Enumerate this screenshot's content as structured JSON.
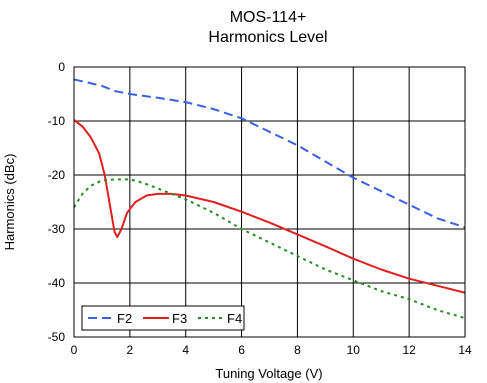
{
  "chart_data": {
    "type": "line",
    "title": "MOS-114+",
    "subtitle": "Harmonics Level",
    "xlabel": "Tuning Voltage (V)",
    "ylabel": "Harmonics (dBc)",
    "xlim": [
      0,
      14
    ],
    "ylim": [
      -50,
      0
    ],
    "xticks": [
      0,
      2,
      4,
      6,
      8,
      10,
      12,
      14
    ],
    "yticks": [
      0,
      -10,
      -20,
      -30,
      -40,
      -50
    ],
    "grid": true,
    "legend_position": "bottom-left",
    "series": [
      {
        "name": "F2",
        "color": "#3a5fe8",
        "style": "dashed",
        "x": [
          0,
          0.5,
          1,
          1.5,
          2,
          3,
          4,
          5,
          6,
          7,
          8,
          9,
          10,
          11,
          12,
          13,
          14
        ],
        "y": [
          -2.3,
          -2.9,
          -3.5,
          -4.5,
          -5,
          -5.7,
          -6.5,
          -7.8,
          -9.5,
          -12,
          -14.5,
          -17.5,
          -20.5,
          -23,
          -25.5,
          -28,
          -29.7
        ]
      },
      {
        "name": "F3",
        "color": "#e02020",
        "style": "solid",
        "x": [
          0,
          0.3,
          0.6,
          0.9,
          1.1,
          1.3,
          1.45,
          1.55,
          1.7,
          1.9,
          2.2,
          2.6,
          3,
          3.5,
          4,
          5,
          6,
          7,
          8,
          9,
          10,
          11,
          12,
          13,
          14
        ],
        "y": [
          -9.8,
          -11,
          -13,
          -16,
          -20,
          -26,
          -30.5,
          -31.5,
          -30,
          -27,
          -25,
          -23.8,
          -23.5,
          -23.5,
          -23.8,
          -25,
          -26.8,
          -28.8,
          -31,
          -33.2,
          -35.5,
          -37.5,
          -39.2,
          -40.5,
          -41.8
        ]
      },
      {
        "name": "F4",
        "color": "#2a8a2a",
        "style": "dotted",
        "x": [
          0,
          0.3,
          0.6,
          1,
          1.5,
          2,
          2.5,
          3,
          4,
          5,
          6,
          7,
          8,
          9,
          10,
          11,
          12,
          13,
          14
        ],
        "y": [
          -26,
          -23.5,
          -22,
          -21,
          -20.8,
          -20.8,
          -21.5,
          -22.5,
          -24.5,
          -27,
          -30,
          -32.5,
          -35,
          -37.5,
          -39.5,
          -41.5,
          -43,
          -45,
          -46.5
        ]
      }
    ]
  }
}
